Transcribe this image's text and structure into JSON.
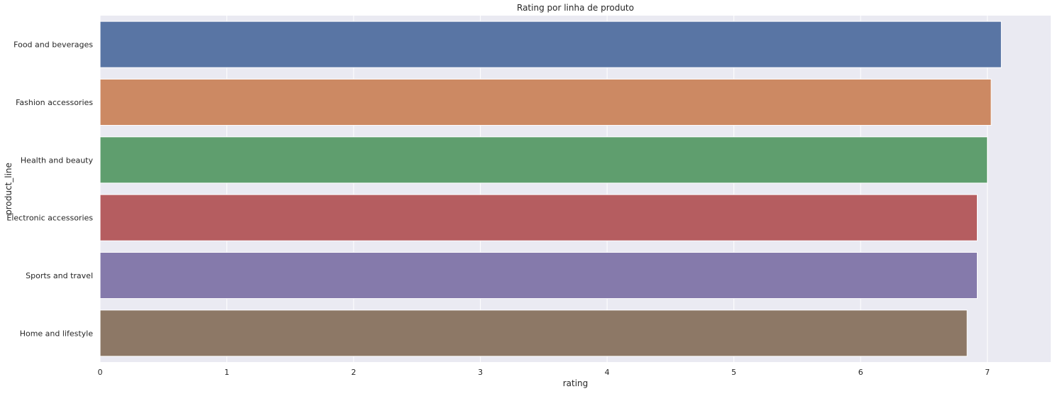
{
  "chart_data": {
    "type": "bar",
    "orientation": "horizontal",
    "title": "Rating por linha de produto",
    "xlabel": "rating",
    "ylabel": "product_line",
    "categories": [
      "Food and beverages",
      "Fashion accessories",
      "Health and beauty",
      "Electronic accessories",
      "Sports and travel",
      "Home and lifestyle"
    ],
    "values": [
      7.11,
      7.03,
      7.0,
      6.92,
      6.92,
      6.84
    ],
    "xlim": [
      0,
      7.5
    ],
    "xticks": [
      "0",
      "1",
      "2",
      "3",
      "4",
      "5",
      "6",
      "7"
    ],
    "colors": [
      "#5975a4",
      "#cc8963",
      "#5f9e6e",
      "#b55d60",
      "#857aab",
      "#8d7866"
    ],
    "background": "#eaeaf2",
    "grid": true,
    "legend": "none"
  }
}
